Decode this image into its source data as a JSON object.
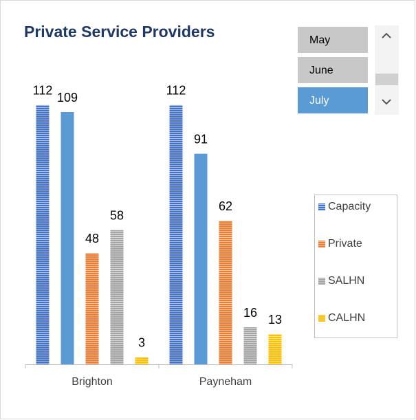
{
  "chart_data": {
    "type": "bar",
    "title": "Private Service Providers",
    "categories": [
      "Brighton",
      "Payneham"
    ],
    "series": [
      {
        "name": "Capacity",
        "color": "#4472c4",
        "striped": true,
        "values": [
          112,
          112
        ]
      },
      {
        "color": "#5b9bd5",
        "striped": false,
        "values": [
          109,
          91
        ]
      },
      {
        "name": "Private",
        "color": "#ed7d31",
        "striped": true,
        "values": [
          48,
          62
        ]
      },
      {
        "name": "SALHN",
        "color": "#a5a5a5",
        "striped": true,
        "values": [
          58,
          16
        ]
      },
      {
        "name": "CALHN",
        "color": "#ffc000",
        "striped": true,
        "values": [
          3,
          13
        ]
      }
    ],
    "ylim": [
      0,
      120
    ],
    "grid": false,
    "legend": "right",
    "data_labels": true
  },
  "slicer": {
    "items": [
      "May",
      "June",
      "July"
    ],
    "selected_index": 2
  }
}
